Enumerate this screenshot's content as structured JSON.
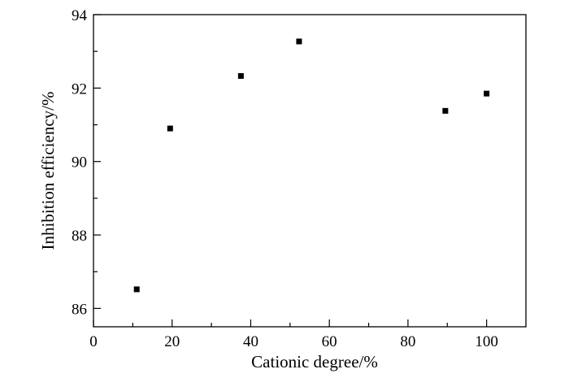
{
  "chart_data": {
    "type": "scatter",
    "xlabel": "Cationic degree/%",
    "ylabel": "Inhibition efficiency/%",
    "xlim": [
      0,
      110
    ],
    "ylim": [
      85.5,
      94
    ],
    "x_ticks": [
      0,
      20,
      40,
      60,
      80,
      100
    ],
    "y_ticks": [
      86,
      88,
      90,
      92,
      94
    ],
    "x_tick_labels": [
      "0",
      "20",
      "40",
      "60",
      "80",
      "100"
    ],
    "y_tick_labels": [
      "86",
      "88",
      "90",
      "92",
      "94"
    ],
    "x_minor_ticks": [
      10,
      30,
      50,
      70,
      90
    ],
    "y_minor_ticks": [
      87,
      89,
      91,
      93
    ],
    "grid": false,
    "marker": "square",
    "marker_color": "#000000",
    "series": [
      {
        "x": [
          11,
          19.5,
          37.5,
          52.3,
          89.5,
          100
        ],
        "y": [
          86.52,
          90.9,
          92.33,
          93.27,
          91.38,
          91.85
        ]
      }
    ]
  }
}
